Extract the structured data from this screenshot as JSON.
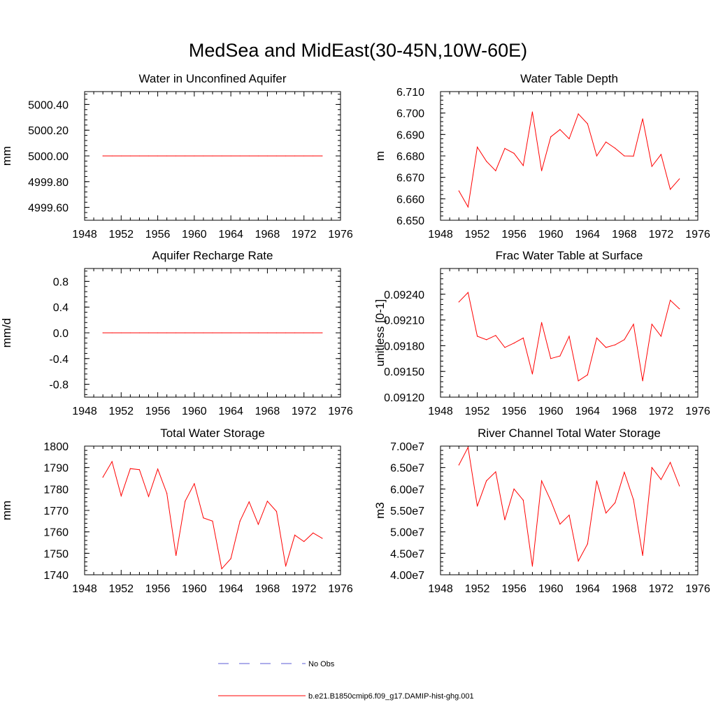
{
  "title": "MedSea and MidEast(30-45N,10W-60E)",
  "legend": [
    {
      "label": "No Obs",
      "color": "#5b5bd6",
      "style": "dashed"
    },
    {
      "label": "b.e21.B1850cmip6.f09_g17.DAMIP-hist-ghg.001",
      "color": "#ff0000",
      "style": "solid"
    }
  ],
  "chart_data": [
    {
      "type": "line",
      "title": "Water in Unconfined Aquifer",
      "ylabel": "mm",
      "xlim": [
        1948,
        1976
      ],
      "ylim": [
        4999.5,
        5000.5
      ],
      "xticks": [
        1948,
        1952,
        1956,
        1960,
        1964,
        1968,
        1972,
        1976
      ],
      "yticks": [
        4999.6,
        4999.8,
        5000.0,
        5000.2,
        5000.4
      ],
      "ytick_labels": [
        "4999.60",
        "4999.80",
        "5000.00",
        "5000.20",
        "5000.40"
      ],
      "series": [
        {
          "color": "#ff0000",
          "x": [
            1950,
            1951,
            1952,
            1953,
            1954,
            1955,
            1956,
            1957,
            1958,
            1959,
            1960,
            1961,
            1962,
            1963,
            1964,
            1965,
            1966,
            1967,
            1968,
            1969,
            1970,
            1971,
            1972,
            1973,
            1974
          ],
          "values": [
            5000.0,
            5000.0,
            5000.0,
            5000.0,
            5000.0,
            5000.0,
            5000.0,
            5000.0,
            5000.0,
            5000.0,
            5000.0,
            5000.0,
            5000.0,
            5000.0,
            5000.0,
            5000.0,
            5000.0,
            5000.0,
            5000.0,
            5000.0,
            5000.0,
            5000.0,
            5000.0,
            5000.0,
            5000.0
          ]
        }
      ]
    },
    {
      "type": "line",
      "title": "Water Table Depth",
      "ylabel": "m",
      "xlim": [
        1948,
        1976
      ],
      "ylim": [
        6.65,
        6.71
      ],
      "xticks": [
        1948,
        1952,
        1956,
        1960,
        1964,
        1968,
        1972,
        1976
      ],
      "yticks": [
        6.65,
        6.66,
        6.67,
        6.68,
        6.69,
        6.7,
        6.71
      ],
      "ytick_labels": [
        "6.650",
        "6.660",
        "6.670",
        "6.680",
        "6.690",
        "6.700",
        "6.710"
      ],
      "series": [
        {
          "color": "#ff0000",
          "x": [
            1950,
            1951,
            1952,
            1953,
            1954,
            1955,
            1956,
            1957,
            1958,
            1959,
            1960,
            1961,
            1962,
            1963,
            1964,
            1965,
            1966,
            1967,
            1968,
            1969,
            1970,
            1971,
            1972,
            1973,
            1974
          ],
          "values": [
            6.6637,
            6.6562,
            6.6841,
            6.6775,
            6.6731,
            6.6835,
            6.6812,
            6.6755,
            6.7005,
            6.6731,
            6.6889,
            6.6923,
            6.688,
            6.6996,
            6.695,
            6.68,
            6.6865,
            6.6836,
            6.68,
            6.6799,
            6.6973,
            6.6751,
            6.6807,
            6.6644,
            6.6693
          ]
        }
      ]
    },
    {
      "type": "line",
      "title": "Aquifer Recharge Rate",
      "ylabel": "mm/d",
      "xlim": [
        1948,
        1976
      ],
      "ylim": [
        -1.0,
        1.0
      ],
      "xticks": [
        1948,
        1952,
        1956,
        1960,
        1964,
        1968,
        1972,
        1976
      ],
      "yticks": [
        -0.8,
        -0.4,
        0.0,
        0.4,
        0.8
      ],
      "ytick_labels": [
        "-0.8",
        "-0.4",
        "0.0",
        "0.4",
        "0.8"
      ],
      "series": [
        {
          "color": "#ff0000",
          "x": [
            1950,
            1951,
            1952,
            1953,
            1954,
            1955,
            1956,
            1957,
            1958,
            1959,
            1960,
            1961,
            1962,
            1963,
            1964,
            1965,
            1966,
            1967,
            1968,
            1969,
            1970,
            1971,
            1972,
            1973,
            1974
          ],
          "values": [
            0,
            0,
            0,
            0,
            0,
            0,
            0,
            0,
            0,
            0,
            0,
            0,
            0,
            0,
            0,
            0,
            0,
            0,
            0,
            0,
            0,
            0,
            0,
            0,
            0
          ]
        }
      ]
    },
    {
      "type": "line",
      "title": "Frac Water Table at Surface",
      "ylabel": "unitless [0-1]",
      "xlim": [
        1948,
        1976
      ],
      "ylim": [
        0.0912,
        0.0927
      ],
      "xticks": [
        1948,
        1952,
        1956,
        1960,
        1964,
        1968,
        1972,
        1976
      ],
      "yticks": [
        0.0912,
        0.0915,
        0.0918,
        0.0921,
        0.0924
      ],
      "ytick_labels": [
        "0.09120",
        "0.09150",
        "0.09180",
        "0.09210",
        "0.09240"
      ],
      "series": [
        {
          "color": "#ff0000",
          "x": [
            1950,
            1951,
            1952,
            1953,
            1954,
            1955,
            1956,
            1957,
            1958,
            1959,
            1960,
            1961,
            1962,
            1963,
            1964,
            1965,
            1966,
            1967,
            1968,
            1969,
            1970,
            1971,
            1972,
            1973,
            1974
          ],
          "values": [
            0.09231,
            0.09242,
            0.09191,
            0.09187,
            0.09192,
            0.09178,
            0.09183,
            0.09189,
            0.09147,
            0.09207,
            0.09165,
            0.09168,
            0.09191,
            0.09139,
            0.09146,
            0.09189,
            0.09178,
            0.09181,
            0.09187,
            0.09205,
            0.09139,
            0.09205,
            0.09191,
            0.09233,
            0.09223
          ]
        }
      ]
    },
    {
      "type": "line",
      "title": "Total Water Storage",
      "ylabel": "mm",
      "xlim": [
        1948,
        1976
      ],
      "ylim": [
        1740,
        1800
      ],
      "xticks": [
        1948,
        1952,
        1956,
        1960,
        1964,
        1968,
        1972,
        1976
      ],
      "yticks": [
        1740,
        1750,
        1760,
        1770,
        1780,
        1790,
        1800
      ],
      "ytick_labels": [
        "1740",
        "1750",
        "1760",
        "1770",
        "1780",
        "1790",
        "1800"
      ],
      "series": [
        {
          "color": "#ff0000",
          "x": [
            1950,
            1951,
            1952,
            1953,
            1954,
            1955,
            1956,
            1957,
            1958,
            1959,
            1960,
            1961,
            1962,
            1963,
            1964,
            1965,
            1966,
            1967,
            1968,
            1969,
            1970,
            1971,
            1972,
            1973,
            1974
          ],
          "values": [
            1785.5,
            1792.8,
            1776.8,
            1789.5,
            1789.0,
            1776.5,
            1789.3,
            1778.0,
            1749.0,
            1774.3,
            1782.5,
            1766.5,
            1765.0,
            1742.8,
            1747.5,
            1765.0,
            1774.0,
            1763.5,
            1774.3,
            1769.5,
            1744.0,
            1758.5,
            1755.5,
            1759.5,
            1757.0
          ]
        }
      ]
    },
    {
      "type": "line",
      "title": "River Channel Total Water Storage",
      "ylabel": "m3",
      "xlim": [
        1948,
        1976
      ],
      "ylim": [
        40000000,
        70000000
      ],
      "xticks": [
        1948,
        1952,
        1956,
        1960,
        1964,
        1968,
        1972,
        1976
      ],
      "yticks": [
        40000000,
        45000000,
        50000000,
        55000000,
        60000000,
        65000000,
        70000000
      ],
      "ytick_labels": [
        "4.00e7",
        "4.50e7",
        "5.00e7",
        "5.50e7",
        "6.00e7",
        "6.50e7",
        "7.00e7"
      ],
      "series": [
        {
          "color": "#ff0000",
          "x": [
            1950,
            1951,
            1952,
            1953,
            1954,
            1955,
            1956,
            1957,
            1958,
            1959,
            1960,
            1961,
            1962,
            1963,
            1964,
            1965,
            1966,
            1967,
            1968,
            1969,
            1970,
            1971,
            1972,
            1973,
            1974
          ],
          "values": [
            65600000,
            69700000,
            56000000,
            61900000,
            64000000,
            52800000,
            60000000,
            57400000,
            42000000,
            61900000,
            57300000,
            51800000,
            53900000,
            43200000,
            47200000,
            61900000,
            54400000,
            56800000,
            63900000,
            57500000,
            44500000,
            65000000,
            62200000,
            66200000,
            60700000
          ]
        }
      ]
    }
  ]
}
